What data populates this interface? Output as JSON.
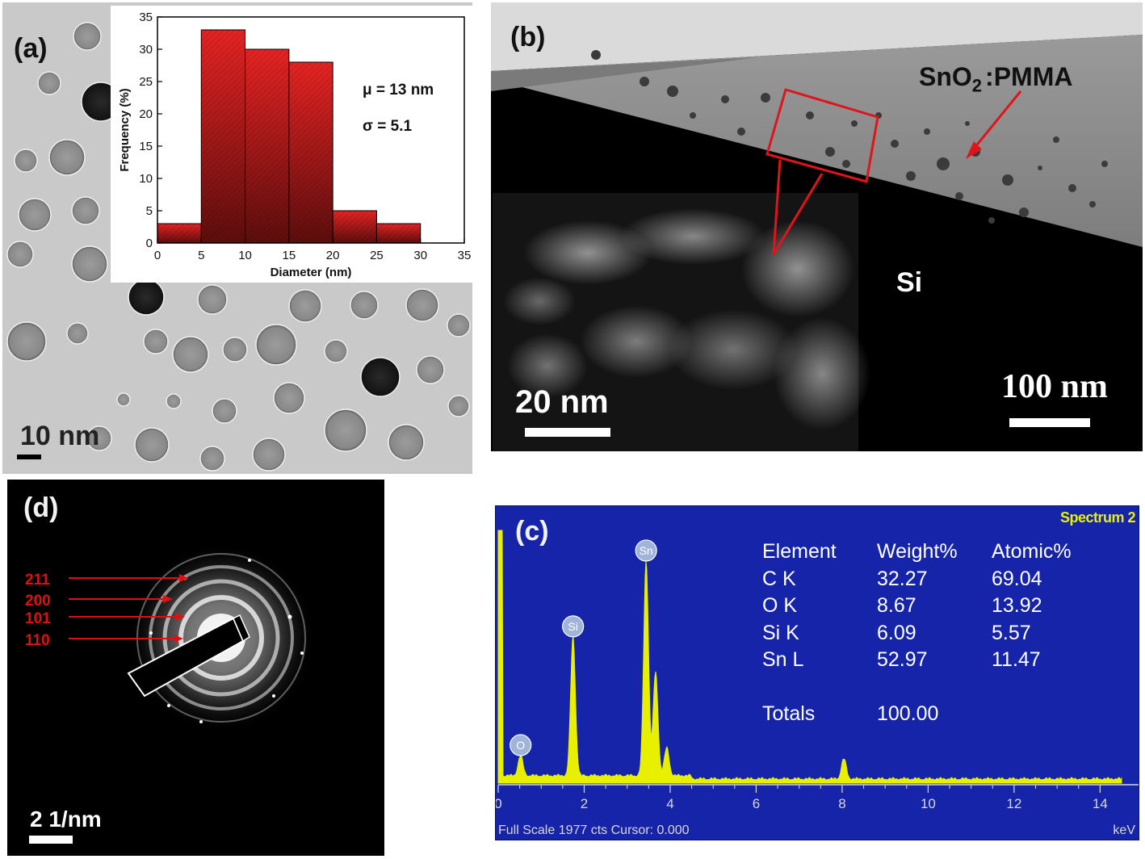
{
  "panel_a": {
    "label": "(a)",
    "scale_bar": "10 nm",
    "inset_annotations": {
      "mu": "μ = 13 nm",
      "sigma": "σ = 5.1"
    }
  },
  "panel_b": {
    "label": "(b)",
    "film_label_main": "SnO",
    "film_label_sub": "2",
    "film_label_tail": ":PMMA",
    "substrate_label": "Si",
    "scale_bar_main": "100 nm",
    "scale_bar_inset": "20 nm"
  },
  "panel_d": {
    "label": "(d)",
    "rings": [
      "211",
      "200",
      "101",
      "110"
    ],
    "scale_bar": "2 1/nm"
  },
  "panel_c": {
    "label": "(c)",
    "spectrum_name": "Spectrum 2",
    "footer_left": "Full Scale 1977 cts Cursor: 0.000",
    "footer_right": "keV",
    "table": {
      "headers": [
        "Element",
        "Weight%",
        "Atomic%"
      ],
      "rows": [
        [
          "C K",
          "32.27",
          "69.04"
        ],
        [
          "O K",
          "8.67",
          "13.92"
        ],
        [
          "Si K",
          "6.09",
          "5.57"
        ],
        [
          "Sn L",
          "52.97",
          "11.47"
        ]
      ],
      "totals_label": "Totals",
      "totals_value": "100.00"
    },
    "peak_labels": [
      "O",
      "Si",
      "Sn"
    ]
  },
  "chart_data": [
    {
      "type": "bar",
      "xlabel": "Diameter (nm)",
      "ylabel": "Frequency (%)",
      "bins": [
        [
          0,
          5
        ],
        [
          5,
          10
        ],
        [
          10,
          15
        ],
        [
          15,
          20
        ],
        [
          20,
          25
        ],
        [
          25,
          30
        ]
      ],
      "values": [
        3,
        33,
        30,
        28,
        5,
        3
      ],
      "xlim": [
        0,
        35
      ],
      "ylim": [
        0,
        35
      ],
      "xticks": [
        0,
        5,
        10,
        15,
        20,
        25,
        30,
        35
      ],
      "yticks": [
        0,
        5,
        10,
        15,
        20,
        25,
        30,
        35
      ],
      "bar_color": "#d01c1c"
    },
    {
      "type": "line",
      "title": "Spectrum 2",
      "xlabel": "keV",
      "xlim": [
        0,
        14.5
      ],
      "xticks": [
        0,
        2,
        4,
        6,
        8,
        10,
        12,
        14
      ],
      "peaks": [
        {
          "label": "O",
          "x": 0.52,
          "height": 0.08
        },
        {
          "label": "Si",
          "x": 1.74,
          "height": 0.55
        },
        {
          "label": "Sn",
          "x": 3.44,
          "height": 0.85
        },
        {
          "label": "",
          "x": 3.66,
          "height": 0.41
        },
        {
          "label": "",
          "x": 3.92,
          "height": 0.11
        },
        {
          "label": "",
          "x": 8.04,
          "height": 0.08
        }
      ],
      "line_color": "#e8f000",
      "background": "#1524a8"
    }
  ]
}
